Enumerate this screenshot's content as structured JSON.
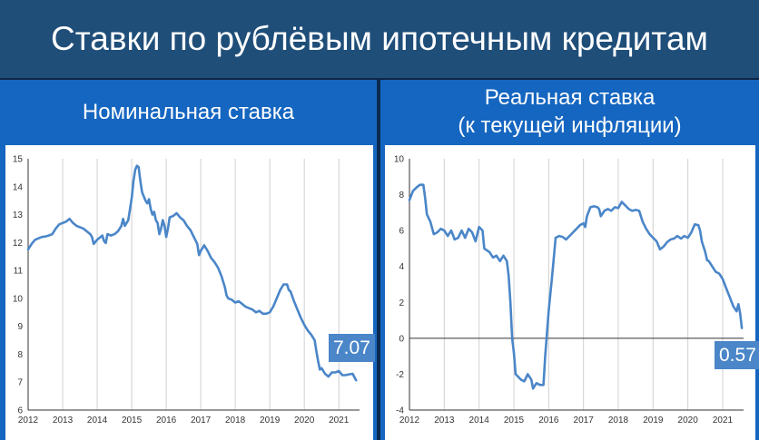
{
  "header": {
    "title": "Ставки по рублёвым ипотечным кредитам"
  },
  "line_color": "#4a86c8",
  "panels": [
    {
      "title_lines": [
        "Номинальная ставка"
      ],
      "callout": "7.07"
    },
    {
      "title_lines": [
        "Реальная ставка",
        "(к текущей инфляции)"
      ],
      "callout": "0.57"
    }
  ],
  "chart_data": [
    {
      "type": "line",
      "title": "Номинальная ставка",
      "xlim": [
        2012,
        2021.6
      ],
      "ylim": [
        6,
        15
      ],
      "x_ticks": [
        "2012",
        "2013",
        "2014",
        "2015",
        "2016",
        "2017",
        "2018",
        "2019",
        "2020",
        "2021"
      ],
      "y_ticks": [
        "6",
        "7",
        "8",
        "9",
        "10",
        "11",
        "12",
        "13",
        "14",
        "15"
      ],
      "last_value_label": "7.07",
      "grid": true,
      "points": [
        [
          2012.0,
          11.75
        ],
        [
          2012.1,
          11.95
        ],
        [
          2012.2,
          12.1
        ],
        [
          2012.3,
          12.15
        ],
        [
          2012.4,
          12.2
        ],
        [
          2012.5,
          12.22
        ],
        [
          2012.6,
          12.25
        ],
        [
          2012.7,
          12.3
        ],
        [
          2012.8,
          12.5
        ],
        [
          2012.9,
          12.65
        ],
        [
          2013.0,
          12.7
        ],
        [
          2013.1,
          12.75
        ],
        [
          2013.2,
          12.85
        ],
        [
          2013.3,
          12.7
        ],
        [
          2013.4,
          12.6
        ],
        [
          2013.5,
          12.55
        ],
        [
          2013.6,
          12.5
        ],
        [
          2013.7,
          12.4
        ],
        [
          2013.8,
          12.3
        ],
        [
          2013.85,
          12.2
        ],
        [
          2013.9,
          11.95
        ],
        [
          2014.0,
          12.1
        ],
        [
          2014.1,
          12.2
        ],
        [
          2014.15,
          12.25
        ],
        [
          2014.2,
          12.05
        ],
        [
          2014.25,
          11.98
        ],
        [
          2014.3,
          12.3
        ],
        [
          2014.4,
          12.25
        ],
        [
          2014.5,
          12.3
        ],
        [
          2014.6,
          12.4
        ],
        [
          2014.7,
          12.6
        ],
        [
          2014.75,
          12.85
        ],
        [
          2014.8,
          12.6
        ],
        [
          2014.9,
          12.8
        ],
        [
          2015.0,
          13.6
        ],
        [
          2015.05,
          14.2
        ],
        [
          2015.1,
          14.6
        ],
        [
          2015.15,
          14.75
        ],
        [
          2015.2,
          14.7
        ],
        [
          2015.25,
          14.2
        ],
        [
          2015.3,
          13.8
        ],
        [
          2015.4,
          13.5
        ],
        [
          2015.45,
          13.4
        ],
        [
          2015.5,
          13.55
        ],
        [
          2015.55,
          13.2
        ],
        [
          2015.6,
          13.0
        ],
        [
          2015.65,
          13.1
        ],
        [
          2015.7,
          12.8
        ],
        [
          2015.75,
          12.7
        ],
        [
          2015.8,
          12.3
        ],
        [
          2015.85,
          12.5
        ],
        [
          2015.9,
          12.8
        ],
        [
          2015.95,
          12.6
        ],
        [
          2016.0,
          12.2
        ],
        [
          2016.05,
          12.5
        ],
        [
          2016.1,
          12.9
        ],
        [
          2016.2,
          12.95
        ],
        [
          2016.3,
          13.05
        ],
        [
          2016.4,
          12.9
        ],
        [
          2016.5,
          12.8
        ],
        [
          2016.6,
          12.6
        ],
        [
          2016.7,
          12.45
        ],
        [
          2016.8,
          12.2
        ],
        [
          2016.9,
          11.95
        ],
        [
          2016.95,
          11.55
        ],
        [
          2017.0,
          11.7
        ],
        [
          2017.1,
          11.9
        ],
        [
          2017.2,
          11.7
        ],
        [
          2017.3,
          11.45
        ],
        [
          2017.4,
          11.3
        ],
        [
          2017.5,
          11.1
        ],
        [
          2017.6,
          10.8
        ],
        [
          2017.7,
          10.4
        ],
        [
          2017.75,
          10.1
        ],
        [
          2017.8,
          10.0
        ],
        [
          2017.9,
          9.95
        ],
        [
          2018.0,
          9.85
        ],
        [
          2018.1,
          9.9
        ],
        [
          2018.2,
          9.8
        ],
        [
          2018.3,
          9.7
        ],
        [
          2018.4,
          9.65
        ],
        [
          2018.5,
          9.6
        ],
        [
          2018.6,
          9.5
        ],
        [
          2018.7,
          9.55
        ],
        [
          2018.8,
          9.45
        ],
        [
          2018.9,
          9.45
        ],
        [
          2019.0,
          9.5
        ],
        [
          2019.1,
          9.7
        ],
        [
          2019.2,
          10.0
        ],
        [
          2019.3,
          10.3
        ],
        [
          2019.4,
          10.5
        ],
        [
          2019.5,
          10.5
        ],
        [
          2019.55,
          10.3
        ],
        [
          2019.6,
          10.25
        ],
        [
          2019.7,
          9.9
        ],
        [
          2019.8,
          9.6
        ],
        [
          2019.9,
          9.3
        ],
        [
          2020.0,
          9.05
        ],
        [
          2020.1,
          8.85
        ],
        [
          2020.2,
          8.7
        ],
        [
          2020.3,
          8.5
        ],
        [
          2020.35,
          8.1
        ],
        [
          2020.4,
          7.75
        ],
        [
          2020.45,
          7.45
        ],
        [
          2020.5,
          7.5
        ],
        [
          2020.6,
          7.3
        ],
        [
          2020.7,
          7.2
        ],
        [
          2020.8,
          7.35
        ],
        [
          2020.9,
          7.35
        ],
        [
          2021.0,
          7.4
        ],
        [
          2021.1,
          7.25
        ],
        [
          2021.2,
          7.25
        ],
        [
          2021.3,
          7.28
        ],
        [
          2021.4,
          7.3
        ],
        [
          2021.5,
          7.07
        ]
      ]
    },
    {
      "type": "line",
      "title": "Реальная ставка (к текущей инфляции)",
      "xlim": [
        2012,
        2021.6
      ],
      "ylim": [
        -4,
        10
      ],
      "x_ticks": [
        "2012",
        "2013",
        "2014",
        "2015",
        "2016",
        "2017",
        "2018",
        "2019",
        "2020",
        "2021"
      ],
      "y_ticks": [
        "-4",
        "-2",
        "0",
        "2",
        "4",
        "6",
        "8",
        "10"
      ],
      "last_value_label": "0.57",
      "grid": true,
      "points": [
        [
          2012.0,
          7.7
        ],
        [
          2012.1,
          8.2
        ],
        [
          2012.2,
          8.4
        ],
        [
          2012.3,
          8.55
        ],
        [
          2012.4,
          8.55
        ],
        [
          2012.45,
          7.8
        ],
        [
          2012.5,
          6.9
        ],
        [
          2012.6,
          6.5
        ],
        [
          2012.7,
          5.8
        ],
        [
          2012.8,
          5.9
        ],
        [
          2012.9,
          6.1
        ],
        [
          2013.0,
          6.0
        ],
        [
          2013.1,
          5.7
        ],
        [
          2013.2,
          6.0
        ],
        [
          2013.3,
          5.5
        ],
        [
          2013.4,
          5.6
        ],
        [
          2013.5,
          6.0
        ],
        [
          2013.6,
          5.6
        ],
        [
          2013.7,
          6.1
        ],
        [
          2013.8,
          5.9
        ],
        [
          2013.9,
          5.4
        ],
        [
          2014.0,
          6.2
        ],
        [
          2014.1,
          6.0
        ],
        [
          2014.15,
          5.0
        ],
        [
          2014.3,
          4.8
        ],
        [
          2014.4,
          4.5
        ],
        [
          2014.5,
          4.6
        ],
        [
          2014.6,
          4.3
        ],
        [
          2014.7,
          4.6
        ],
        [
          2014.8,
          4.3
        ],
        [
          2014.85,
          3.5
        ],
        [
          2014.9,
          2.0
        ],
        [
          2014.95,
          0.0
        ],
        [
          2015.0,
          -0.8
        ],
        [
          2015.05,
          -2.0
        ],
        [
          2015.2,
          -2.3
        ],
        [
          2015.3,
          -2.4
        ],
        [
          2015.4,
          -2.0
        ],
        [
          2015.5,
          -2.3
        ],
        [
          2015.55,
          -2.8
        ],
        [
          2015.65,
          -2.5
        ],
        [
          2015.75,
          -2.6
        ],
        [
          2015.85,
          -2.6
        ],
        [
          2015.9,
          -1.0
        ],
        [
          2016.0,
          1.5
        ],
        [
          2016.1,
          3.5
        ],
        [
          2016.2,
          5.6
        ],
        [
          2016.3,
          5.7
        ],
        [
          2016.4,
          5.65
        ],
        [
          2016.5,
          5.5
        ],
        [
          2016.6,
          5.7
        ],
        [
          2016.7,
          5.9
        ],
        [
          2016.8,
          6.1
        ],
        [
          2016.9,
          6.3
        ],
        [
          2017.0,
          6.4
        ],
        [
          2017.05,
          6.2
        ],
        [
          2017.1,
          6.8
        ],
        [
          2017.2,
          7.3
        ],
        [
          2017.3,
          7.35
        ],
        [
          2017.4,
          7.3
        ],
        [
          2017.45,
          7.2
        ],
        [
          2017.5,
          6.8
        ],
        [
          2017.6,
          7.1
        ],
        [
          2017.7,
          7.2
        ],
        [
          2017.8,
          7.1
        ],
        [
          2017.9,
          7.3
        ],
        [
          2018.0,
          7.25
        ],
        [
          2018.1,
          7.6
        ],
        [
          2018.2,
          7.4
        ],
        [
          2018.3,
          7.2
        ],
        [
          2018.4,
          7.1
        ],
        [
          2018.5,
          7.15
        ],
        [
          2018.6,
          7.1
        ],
        [
          2018.7,
          6.5
        ],
        [
          2018.8,
          6.1
        ],
        [
          2018.9,
          5.8
        ],
        [
          2019.0,
          5.6
        ],
        [
          2019.1,
          5.4
        ],
        [
          2019.2,
          4.95
        ],
        [
          2019.3,
          5.1
        ],
        [
          2019.4,
          5.35
        ],
        [
          2019.5,
          5.5
        ],
        [
          2019.6,
          5.55
        ],
        [
          2019.7,
          5.7
        ],
        [
          2019.8,
          5.55
        ],
        [
          2019.9,
          5.7
        ],
        [
          2020.0,
          5.6
        ],
        [
          2020.1,
          5.9
        ],
        [
          2020.2,
          6.35
        ],
        [
          2020.3,
          6.3
        ],
        [
          2020.35,
          6.0
        ],
        [
          2020.4,
          5.4
        ],
        [
          2020.5,
          4.8
        ],
        [
          2020.55,
          4.35
        ],
        [
          2020.6,
          4.3
        ],
        [
          2020.7,
          4.0
        ],
        [
          2020.8,
          3.7
        ],
        [
          2020.9,
          3.6
        ],
        [
          2021.0,
          3.3
        ],
        [
          2021.1,
          2.8
        ],
        [
          2021.2,
          2.3
        ],
        [
          2021.3,
          1.8
        ],
        [
          2021.4,
          1.5
        ],
        [
          2021.45,
          1.9
        ],
        [
          2021.5,
          1.4
        ],
        [
          2021.55,
          0.57
        ]
      ]
    }
  ]
}
